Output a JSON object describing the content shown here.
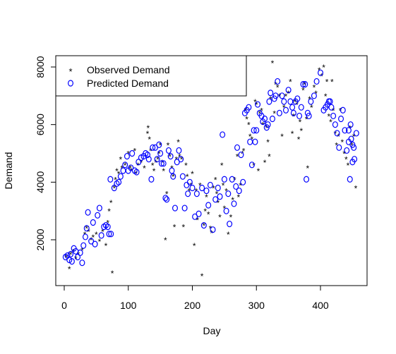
{
  "chart_data": {
    "type": "scatter",
    "title": "",
    "xlabel": "Day",
    "ylabel": "Demand",
    "xlim": [
      0,
      460
    ],
    "ylim": [
      500,
      8200
    ],
    "x_ticks": [
      0,
      100,
      200,
      300,
      400
    ],
    "y_ticks": [
      2000,
      4000,
      6000,
      8000
    ],
    "x_tick_labels": [
      "0",
      "100",
      "200",
      "300",
      "400"
    ],
    "y_tick_labels": [
      "2000",
      "4000",
      "6000",
      "8000"
    ],
    "grid": false,
    "legend_position": "top-left",
    "series": [
      {
        "name": "Observed Demand",
        "marker": "star",
        "color": "#ff0000",
        "points": [
          [
            3,
            1400
          ],
          [
            8,
            1000
          ],
          [
            10,
            1500
          ],
          [
            14,
            1600
          ],
          [
            18,
            1350
          ],
          [
            22,
            1500
          ],
          [
            28,
            1650
          ],
          [
            32,
            2200
          ],
          [
            35,
            2400
          ],
          [
            38,
            2300
          ],
          [
            42,
            2000
          ],
          [
            45,
            2100
          ],
          [
            50,
            2200
          ],
          [
            55,
            1950
          ],
          [
            60,
            2300
          ],
          [
            65,
            1800
          ],
          [
            68,
            2600
          ],
          [
            70,
            3000
          ],
          [
            73,
            3300
          ],
          [
            75,
            850
          ],
          [
            78,
            3800
          ],
          [
            80,
            4100
          ],
          [
            82,
            4400
          ],
          [
            85,
            4300
          ],
          [
            88,
            4800
          ],
          [
            90,
            4500
          ],
          [
            95,
            4600
          ],
          [
            100,
            5000
          ],
          [
            103,
            4500
          ],
          [
            105,
            4400
          ],
          [
            110,
            5100
          ],
          [
            112,
            4300
          ],
          [
            115,
            4600
          ],
          [
            120,
            4700
          ],
          [
            125,
            4500
          ],
          [
            130,
            5700
          ],
          [
            131,
            5900
          ],
          [
            133,
            5500
          ],
          [
            135,
            5100
          ],
          [
            138,
            4600
          ],
          [
            140,
            4400
          ],
          [
            143,
            4700
          ],
          [
            146,
            4800
          ],
          [
            148,
            5000
          ],
          [
            150,
            5300
          ],
          [
            153,
            4700
          ],
          [
            155,
            4400
          ],
          [
            158,
            2000
          ],
          [
            160,
            3600
          ],
          [
            162,
            5300
          ],
          [
            165,
            4900
          ],
          [
            168,
            4500
          ],
          [
            170,
            4200
          ],
          [
            172,
            2450
          ],
          [
            175,
            4800
          ],
          [
            178,
            5400
          ],
          [
            180,
            4900
          ],
          [
            183,
            4800
          ],
          [
            186,
            2450
          ],
          [
            190,
            4600
          ],
          [
            192,
            4200
          ],
          [
            195,
            3700
          ],
          [
            198,
            3900
          ],
          [
            200,
            4300
          ],
          [
            203,
            1800
          ],
          [
            206,
            3700
          ],
          [
            208,
            2700
          ],
          [
            212,
            3900
          ],
          [
            215,
            750
          ],
          [
            218,
            2500
          ],
          [
            220,
            3000
          ],
          [
            222,
            3500
          ],
          [
            225,
            2900
          ],
          [
            228,
            2400
          ],
          [
            230,
            2250
          ],
          [
            233,
            3800
          ],
          [
            236,
            4100
          ],
          [
            238,
            3600
          ],
          [
            240,
            3300
          ],
          [
            243,
            2800
          ],
          [
            246,
            4600
          ],
          [
            248,
            3900
          ],
          [
            250,
            3100
          ],
          [
            253,
            3700
          ],
          [
            256,
            2200
          ],
          [
            260,
            2800
          ],
          [
            263,
            3400
          ],
          [
            266,
            4100
          ],
          [
            270,
            4900
          ],
          [
            272,
            3500
          ],
          [
            275,
            3900
          ],
          [
            278,
            5000
          ],
          [
            280,
            5100
          ],
          [
            283,
            6500
          ],
          [
            285,
            6200
          ],
          [
            288,
            6000
          ],
          [
            290,
            5600
          ],
          [
            293,
            5500
          ],
          [
            296,
            4600
          ],
          [
            298,
            6800
          ],
          [
            300,
            6700
          ],
          [
            303,
            4400
          ],
          [
            305,
            6400
          ],
          [
            308,
            6500
          ],
          [
            310,
            6000
          ],
          [
            313,
            4700
          ],
          [
            316,
            5900
          ],
          [
            318,
            5400
          ],
          [
            320,
            4900
          ],
          [
            322,
            6900
          ],
          [
            325,
            8150
          ],
          [
            328,
            6400
          ],
          [
            330,
            7400
          ],
          [
            333,
            7300
          ],
          [
            336,
            7000
          ],
          [
            340,
            5600
          ],
          [
            343,
            6600
          ],
          [
            346,
            7000
          ],
          [
            350,
            7100
          ],
          [
            353,
            7500
          ],
          [
            356,
            5700
          ],
          [
            358,
            6300
          ],
          [
            360,
            6800
          ],
          [
            363,
            6700
          ],
          [
            366,
            5500
          ],
          [
            368,
            6100
          ],
          [
            370,
            5800
          ],
          [
            373,
            7200
          ],
          [
            375,
            7400
          ],
          [
            378,
            6200
          ],
          [
            380,
            4500
          ],
          [
            383,
            6900
          ],
          [
            386,
            6600
          ],
          [
            390,
            7300
          ],
          [
            393,
            7100
          ],
          [
            398,
            7900
          ],
          [
            402,
            7700
          ],
          [
            405,
            8000
          ],
          [
            408,
            7000
          ],
          [
            410,
            7500
          ],
          [
            413,
            6300
          ],
          [
            416,
            6100
          ],
          [
            418,
            7500
          ],
          [
            420,
            6500
          ],
          [
            423,
            5700
          ],
          [
            425,
            5300
          ],
          [
            428,
            5600
          ],
          [
            431,
            6500
          ],
          [
            434,
            5400
          ],
          [
            437,
            5000
          ],
          [
            440,
            4800
          ],
          [
            443,
            4600
          ],
          [
            446,
            5900
          ],
          [
            449,
            5300
          ],
          [
            452,
            5600
          ],
          [
            455,
            3800
          ]
        ]
      },
      {
        "name": "Predicted Demand",
        "marker": "circle",
        "color": "#0000ff",
        "points": [
          [
            2,
            1400
          ],
          [
            5,
            1450
          ],
          [
            8,
            1300
          ],
          [
            10,
            1500
          ],
          [
            12,
            1250
          ],
          [
            15,
            1700
          ],
          [
            18,
            1600
          ],
          [
            21,
            1400
          ],
          [
            25,
            1550
          ],
          [
            28,
            1200
          ],
          [
            30,
            1800
          ],
          [
            33,
            2100
          ],
          [
            35,
            2400
          ],
          [
            37,
            2950
          ],
          [
            42,
            1950
          ],
          [
            45,
            2600
          ],
          [
            48,
            1850
          ],
          [
            52,
            2850
          ],
          [
            55,
            3100
          ],
          [
            58,
            2150
          ],
          [
            62,
            2450
          ],
          [
            65,
            2500
          ],
          [
            68,
            2450
          ],
          [
            70,
            2200
          ],
          [
            72,
            4100
          ],
          [
            73,
            2200
          ],
          [
            78,
            3800
          ],
          [
            82,
            3950
          ],
          [
            85,
            4000
          ],
          [
            88,
            4200
          ],
          [
            92,
            4400
          ],
          [
            95,
            4600
          ],
          [
            98,
            4900
          ],
          [
            100,
            4400
          ],
          [
            104,
            4500
          ],
          [
            106,
            5000
          ],
          [
            110,
            4400
          ],
          [
            113,
            4350
          ],
          [
            116,
            4700
          ],
          [
            120,
            4850
          ],
          [
            124,
            4900
          ],
          [
            127,
            5000
          ],
          [
            130,
            4950
          ],
          [
            132,
            4800
          ],
          [
            136,
            4100
          ],
          [
            138,
            5200
          ],
          [
            142,
            5200
          ],
          [
            145,
            4800
          ],
          [
            148,
            5300
          ],
          [
            150,
            5000
          ],
          [
            152,
            4650
          ],
          [
            155,
            4650
          ],
          [
            158,
            3450
          ],
          [
            160,
            3400
          ],
          [
            163,
            5100
          ],
          [
            166,
            4900
          ],
          [
            168,
            4400
          ],
          [
            170,
            4200
          ],
          [
            173,
            3100
          ],
          [
            176,
            4700
          ],
          [
            179,
            5100
          ],
          [
            182,
            4800
          ],
          [
            185,
            4200
          ],
          [
            188,
            3100
          ],
          [
            191,
            3900
          ],
          [
            193,
            3600
          ],
          [
            196,
            4000
          ],
          [
            200,
            3800
          ],
          [
            204,
            2800
          ],
          [
            207,
            3600
          ],
          [
            210,
            2900
          ],
          [
            215,
            3800
          ],
          [
            218,
            2500
          ],
          [
            222,
            3700
          ],
          [
            225,
            3200
          ],
          [
            228,
            3900
          ],
          [
            232,
            2350
          ],
          [
            236,
            3400
          ],
          [
            240,
            3800
          ],
          [
            243,
            3500
          ],
          [
            247,
            5650
          ],
          [
            250,
            4100
          ],
          [
            253,
            3000
          ],
          [
            256,
            3600
          ],
          [
            258,
            2550
          ],
          [
            262,
            4100
          ],
          [
            265,
            3250
          ],
          [
            268,
            3850
          ],
          [
            270,
            5200
          ],
          [
            273,
            3700
          ],
          [
            276,
            4950
          ],
          [
            279,
            4000
          ],
          [
            282,
            6400
          ],
          [
            285,
            6500
          ],
          [
            288,
            6600
          ],
          [
            290,
            5400
          ],
          [
            293,
            4600
          ],
          [
            296,
            5800
          ],
          [
            298,
            5400
          ],
          [
            300,
            5800
          ],
          [
            302,
            6700
          ],
          [
            305,
            6400
          ],
          [
            308,
            6300
          ],
          [
            310,
            6100
          ],
          [
            313,
            6200
          ],
          [
            316,
            5900
          ],
          [
            318,
            6000
          ],
          [
            320,
            6800
          ],
          [
            322,
            7100
          ],
          [
            325,
            6200
          ],
          [
            328,
            6900
          ],
          [
            330,
            7000
          ],
          [
            333,
            7500
          ],
          [
            336,
            6400
          ],
          [
            340,
            7000
          ],
          [
            343,
            6800
          ],
          [
            346,
            6500
          ],
          [
            350,
            7200
          ],
          [
            353,
            6800
          ],
          [
            356,
            6600
          ],
          [
            358,
            6400
          ],
          [
            361,
            6800
          ],
          [
            364,
            6900
          ],
          [
            367,
            6300
          ],
          [
            370,
            6600
          ],
          [
            373,
            7400
          ],
          [
            376,
            7400
          ],
          [
            378,
            4100
          ],
          [
            380,
            6400
          ],
          [
            382,
            6300
          ],
          [
            385,
            6800
          ],
          [
            390,
            7000
          ],
          [
            394,
            7500
          ],
          [
            400,
            7800
          ],
          [
            405,
            6500
          ],
          [
            408,
            6600
          ],
          [
            411,
            6700
          ],
          [
            413,
            6800
          ],
          [
            415,
            6800
          ],
          [
            417,
            6600
          ],
          [
            420,
            6300
          ],
          [
            423,
            6000
          ],
          [
            426,
            5700
          ],
          [
            429,
            5200
          ],
          [
            432,
            6200
          ],
          [
            435,
            6500
          ],
          [
            438,
            5800
          ],
          [
            441,
            5100
          ],
          [
            444,
            5400
          ],
          [
            447,
            6000
          ],
          [
            450,
            5300
          ],
          [
            453,
            4800
          ],
          [
            456,
            5700
          ],
          [
            450,
            4700
          ],
          [
            446,
            4100
          ],
          [
            444,
            5800
          ],
          [
            448,
            5500
          ],
          [
            452,
            5200
          ]
        ]
      }
    ]
  }
}
